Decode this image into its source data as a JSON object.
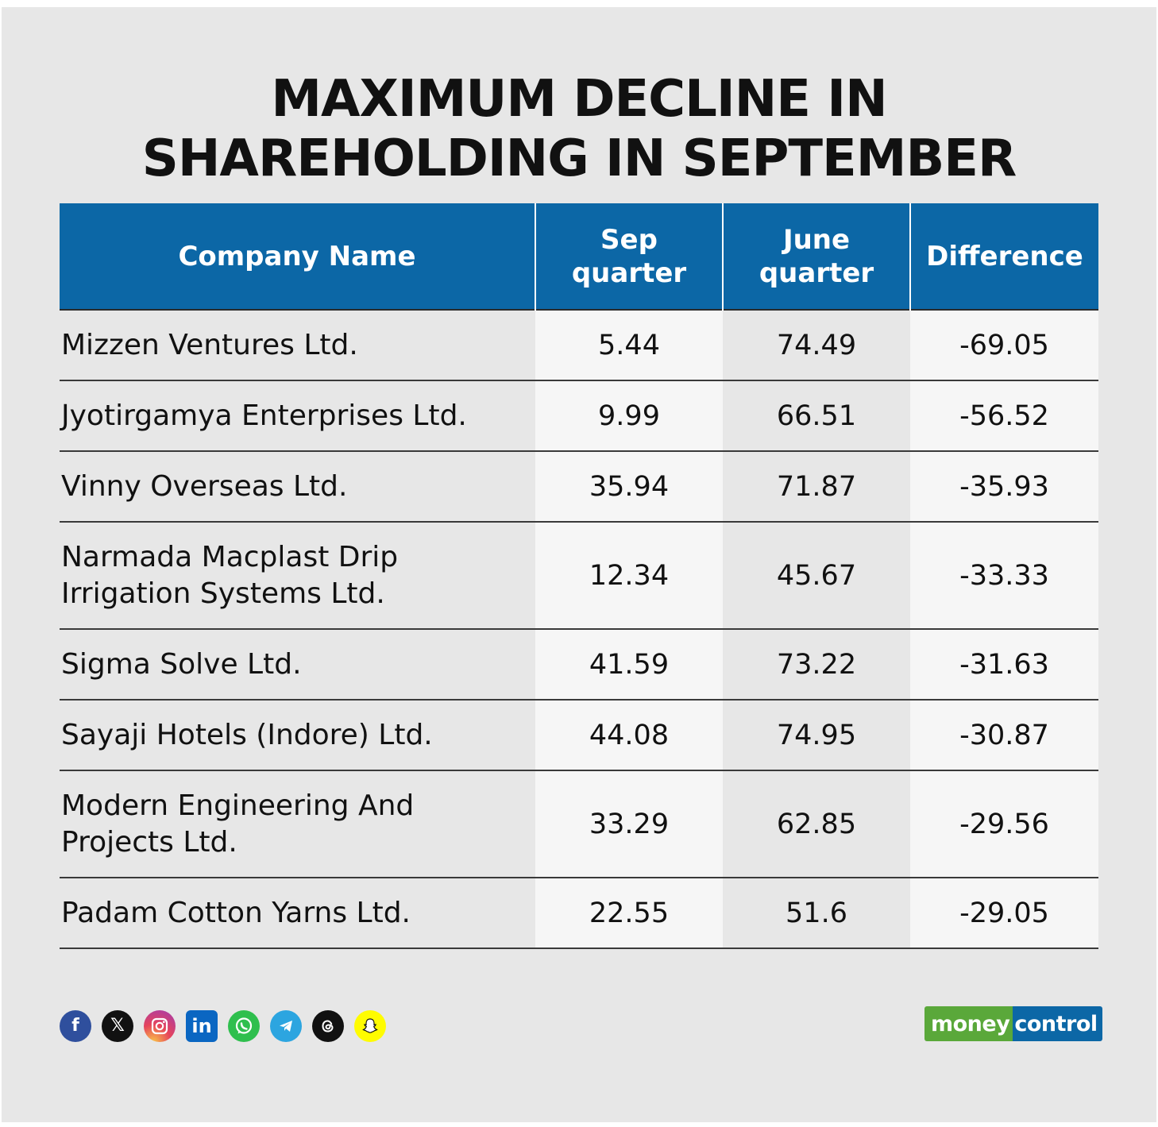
{
  "title_line1": "MAXIMUM DECLINE IN",
  "title_line2": "SHAREHOLDING IN SEPTEMBER",
  "chart_data": {
    "type": "table",
    "columns": [
      "Company Name",
      "Sep quarter",
      "June quarter",
      "Difference"
    ],
    "header_lines": [
      [
        "Company Name"
      ],
      [
        "Sep",
        "quarter"
      ],
      [
        "June",
        "quarter"
      ],
      [
        "Difference"
      ]
    ],
    "rows": [
      {
        "company": "Mizzen Ventures Ltd.",
        "sep": "5.44",
        "june": "74.49",
        "diff": "-69.05"
      },
      {
        "company": "Jyotirgamya Enterprises Ltd.",
        "sep": "9.99",
        "june": "66.51",
        "diff": "-56.52"
      },
      {
        "company": "Vinny Overseas Ltd.",
        "sep": "35.94",
        "june": "71.87",
        "diff": "-35.93"
      },
      {
        "company": "Narmada Macplast Drip Irrigation Systems Ltd.",
        "sep": "12.34",
        "june": "45.67",
        "diff": "-33.33"
      },
      {
        "company": "Sigma Solve Ltd.",
        "sep": "41.59",
        "june": "73.22",
        "diff": "-31.63"
      },
      {
        "company": "Sayaji Hotels (Indore) Ltd.",
        "sep": "44.08",
        "june": "74.95",
        "diff": "-30.87"
      },
      {
        "company": "Modern Engineering And Projects Ltd.",
        "sep": "33.29",
        "june": "62.85",
        "diff": "-29.56"
      },
      {
        "company": "Padam Cotton Yarns Ltd.",
        "sep": "22.55",
        "june": "51.6",
        "diff": "-29.05"
      }
    ]
  },
  "colors": {
    "header_bg": "#0c67a6",
    "background": "#e7e7e7",
    "light_cell": "#f6f6f6",
    "logo_green": "#5aa83a",
    "logo_blue": "#0c67a6"
  },
  "social_icons": [
    "facebook-icon",
    "x-icon",
    "instagram-icon",
    "linkedin-icon",
    "whatsapp-icon",
    "telegram-icon",
    "threads-icon",
    "snapchat-icon"
  ],
  "logo": {
    "part1": "money",
    "part2": "control"
  }
}
